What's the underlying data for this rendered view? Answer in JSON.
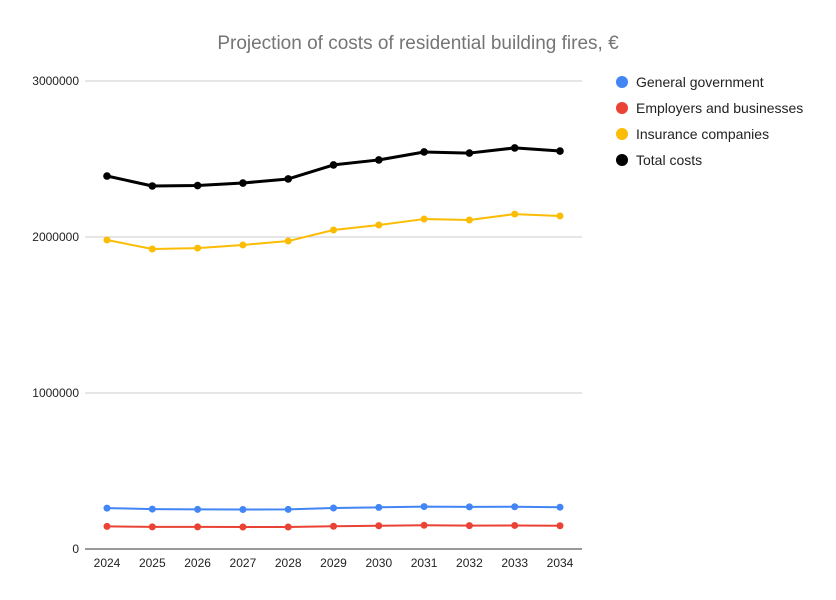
{
  "chart_data": {
    "type": "line",
    "title": "Projection of costs of residential building fires, €",
    "xlabel": "",
    "ylabel": "",
    "x": [
      "2024",
      "2025",
      "2026",
      "2027",
      "2028",
      "2029",
      "2030",
      "2031",
      "2032",
      "2033",
      "2034"
    ],
    "ylim": [
      0,
      3000000
    ],
    "yticks": [
      0,
      1000000,
      2000000,
      3000000
    ],
    "ytick_labels": [
      "0",
      "1000000",
      "2000000",
      "3000000"
    ],
    "grid": true,
    "legend_position": "right",
    "series": [
      {
        "name": "General government",
        "color": "#4285f4",
        "values": [
          262000,
          256000,
          254000,
          253000,
          254000,
          263000,
          267000,
          272000,
          270000,
          271000,
          268000
        ]
      },
      {
        "name": "Employers and businesses",
        "color": "#ea4335",
        "values": [
          145000,
          142000,
          142000,
          141000,
          141000,
          146000,
          149000,
          152000,
          150000,
          151000,
          149000
        ]
      },
      {
        "name": "Insurance companies",
        "color": "#fbbc04",
        "values": [
          1981000,
          1923000,
          1929000,
          1949000,
          1974000,
          2045000,
          2077000,
          2115000,
          2109000,
          2147000,
          2135000
        ]
      },
      {
        "name": "Total costs",
        "color": "#000000",
        "values": [
          2391000,
          2327000,
          2330000,
          2346000,
          2372000,
          2462000,
          2494000,
          2545000,
          2538000,
          2571000,
          2551000
        ]
      }
    ]
  }
}
